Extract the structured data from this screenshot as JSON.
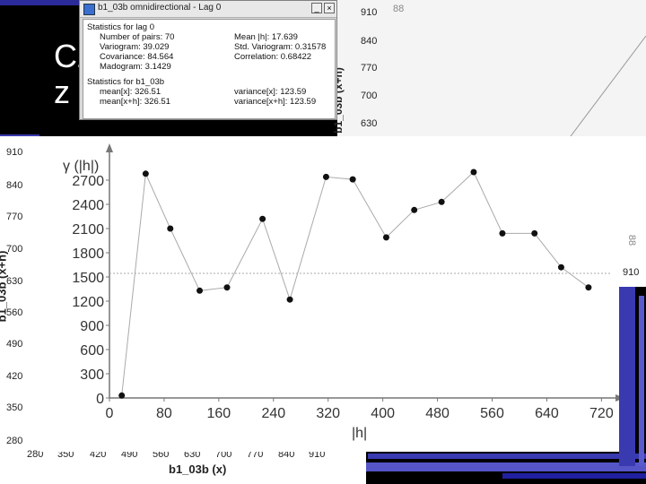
{
  "slide": {
    "title_line1": "Cz",
    "title_line2": "z"
  },
  "dialog": {
    "title": "b1_03b omnidirectional - Lag 0",
    "minimize_label": "_",
    "close_label": "×",
    "section1_header": "Statistics for lag 0",
    "stats_left": [
      "Number of pairs: 70",
      "Variogram: 39.029",
      "Covariance: 84.564",
      "Madogram: 3.1429"
    ],
    "stats_right": [
      "Mean |h|: 17.639",
      "Std. Variogram: 0.31578",
      "Correlation: 0.68422"
    ],
    "section2_header": "Statistics for b1_03b",
    "stats2_left": [
      "mean[x]: 326.51",
      "mean[x+h]: 326.51"
    ],
    "stats2_right": [
      "variance[x]: 123.59",
      "variance[x+h]: 123.59"
    ]
  },
  "back_scatter": {
    "y_ticks": [
      "910",
      "840",
      "770",
      "700",
      "630"
    ],
    "y_label": "b1_03b (x+h)",
    "corner_text": "88"
  },
  "left_scatter": {
    "y_ticks": [
      "910",
      "840",
      "770",
      "700",
      "630",
      "560",
      "490",
      "420",
      "350",
      "280"
    ],
    "x_ticks": [
      "280",
      "350",
      "420",
      "490",
      "560",
      "630",
      "700",
      "770",
      "840",
      "910"
    ],
    "y_label": "b1_03b (x+h)",
    "x_label": "b1_03b (x)"
  },
  "right_panel": {
    "tick": "910",
    "corner_text": "88"
  },
  "chart_data": {
    "type": "line",
    "title": "γ (|h|)",
    "xlabel": "|h|",
    "ylabel": "γ (|h|)",
    "xlim": [
      0,
      730
    ],
    "ylim": [
      0,
      3000
    ],
    "x_ticks": [
      0,
      80,
      160,
      240,
      320,
      400,
      480,
      560,
      640,
      720
    ],
    "y_ticks": [
      0,
      300,
      600,
      900,
      1200,
      1500,
      1800,
      2100,
      2400,
      2700
    ],
    "reference_line": 1545,
    "x": [
      18,
      53,
      89,
      132,
      172,
      224,
      264,
      317,
      356,
      405,
      446,
      486,
      533,
      575,
      622,
      661,
      701
    ],
    "y": [
      30,
      2780,
      2100,
      1330,
      1370,
      2220,
      1220,
      2740,
      2710,
      1990,
      2330,
      2430,
      2800,
      2040,
      2040,
      1620,
      1370
    ]
  }
}
